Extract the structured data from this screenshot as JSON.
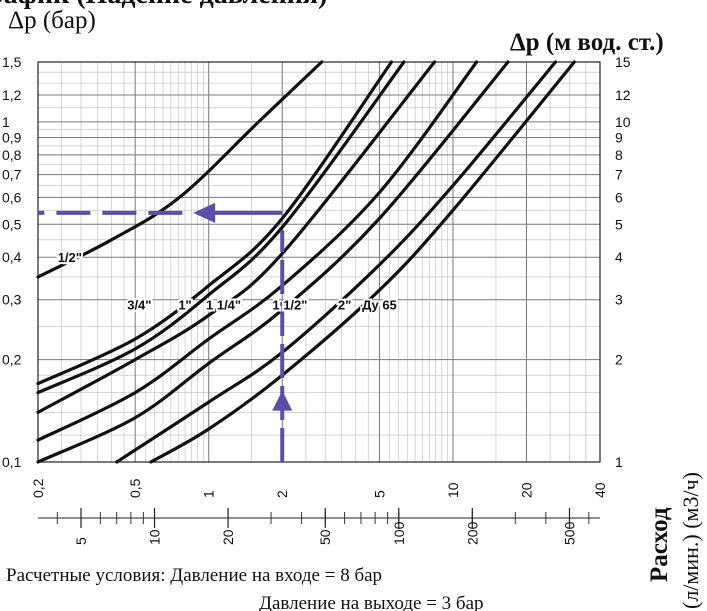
{
  "chart_data": {
    "type": "line",
    "title_fragment": "рафик (Падение давления)",
    "y_left_label": "Δp (бар)",
    "y_right_label": "Δp (м вод. ст.)",
    "x_right_label_1": "Расход",
    "x_right_label_2": "(л/мин.) (м3/ч)",
    "x_scale": "log",
    "y_scale": "log",
    "x_range_m3h": [
      0.2,
      40
    ],
    "y_range_bar": [
      0.1,
      1.5
    ],
    "y_ticks_left": [
      {
        "v": 1.5,
        "label": "1,5"
      },
      {
        "v": 1.2,
        "label": "1,2"
      },
      {
        "v": 1.0,
        "label": "1"
      },
      {
        "v": 0.9,
        "label": "0,9"
      },
      {
        "v": 0.8,
        "label": "0,8"
      },
      {
        "v": 0.7,
        "label": "0,7"
      },
      {
        "v": 0.6,
        "label": "0,6"
      },
      {
        "v": 0.5,
        "label": "0,5"
      },
      {
        "v": 0.4,
        "label": "0,4"
      },
      {
        "v": 0.3,
        "label": "0,3"
      },
      {
        "v": 0.2,
        "label": "0,2"
      },
      {
        "v": 0.1,
        "label": "0,1"
      }
    ],
    "y_ticks_right": [
      {
        "v": 1.5,
        "label": "15"
      },
      {
        "v": 1.2,
        "label": "12"
      },
      {
        "v": 1.0,
        "label": "10"
      },
      {
        "v": 0.9,
        "label": "9"
      },
      {
        "v": 0.8,
        "label": "8"
      },
      {
        "v": 0.7,
        "label": "7"
      },
      {
        "v": 0.6,
        "label": "6"
      },
      {
        "v": 0.5,
        "label": "5"
      },
      {
        "v": 0.4,
        "label": "4"
      },
      {
        "v": 0.3,
        "label": "3"
      },
      {
        "v": 0.2,
        "label": "2"
      },
      {
        "v": 0.1,
        "label": "1"
      }
    ],
    "x_ticks_m3h": [
      {
        "v": 0.2,
        "label": "0,2"
      },
      {
        "v": 0.5,
        "label": "0,5"
      },
      {
        "v": 1,
        "label": "1"
      },
      {
        "v": 2,
        "label": "2"
      },
      {
        "v": 5,
        "label": "5"
      },
      {
        "v": 10,
        "label": "10"
      },
      {
        "v": 20,
        "label": "20"
      },
      {
        "v": 40,
        "label": "40"
      }
    ],
    "x_ticks_lmin": [
      {
        "v": 5,
        "label": "5"
      },
      {
        "v": 10,
        "label": "10"
      },
      {
        "v": 20,
        "label": "20"
      },
      {
        "v": 50,
        "label": "50"
      },
      {
        "v": 100,
        "label": "100"
      },
      {
        "v": 200,
        "label": "200"
      },
      {
        "v": 500,
        "label": "500"
      }
    ],
    "series": [
      {
        "name": "1/2\"",
        "points": [
          [
            0.2,
            0.35
          ],
          [
            0.4,
            0.45
          ],
          [
            0.76,
            0.6
          ],
          [
            1.6,
            1.0
          ],
          [
            2.9,
            1.5
          ]
        ]
      },
      {
        "name": "3/4\"",
        "points": [
          [
            0.2,
            0.17
          ],
          [
            0.5,
            0.23
          ],
          [
            1.0,
            0.33
          ],
          [
            2.0,
            0.52
          ],
          [
            5.6,
            1.5
          ]
        ]
      },
      {
        "name": "1\"",
        "points": [
          [
            0.2,
            0.16
          ],
          [
            0.5,
            0.215
          ],
          [
            1.0,
            0.31
          ],
          [
            2.0,
            0.49
          ],
          [
            6.3,
            1.5
          ]
        ]
      },
      {
        "name": "1 1/4\"",
        "points": [
          [
            0.2,
            0.14
          ],
          [
            0.5,
            0.2
          ],
          [
            1.0,
            0.27
          ],
          [
            2.0,
            0.41
          ],
          [
            8.4,
            1.5
          ]
        ]
      },
      {
        "name": "1 1/2\"",
        "points": [
          [
            0.2,
            0.116
          ],
          [
            0.5,
            0.16
          ],
          [
            1.0,
            0.23
          ],
          [
            2.0,
            0.33
          ],
          [
            5.0,
            0.62
          ],
          [
            12.5,
            1.5
          ]
        ]
      },
      {
        "name": "2\"",
        "points": [
          [
            0.2,
            0.1
          ],
          [
            0.5,
            0.135
          ],
          [
            1.0,
            0.195
          ],
          [
            2.0,
            0.28
          ],
          [
            5.0,
            0.52
          ],
          [
            16.8,
            1.5
          ]
        ]
      },
      {
        "name": "",
        "points": [
          [
            0.42,
            0.1
          ],
          [
            1.0,
            0.15
          ],
          [
            2.0,
            0.21
          ],
          [
            5.0,
            0.38
          ],
          [
            10.0,
            0.65
          ],
          [
            26.3,
            1.5
          ]
        ]
      },
      {
        "name": "Ду 65",
        "points": [
          [
            0.58,
            0.1
          ],
          [
            1.0,
            0.125
          ],
          [
            2.0,
            0.18
          ],
          [
            5.0,
            0.32
          ],
          [
            10.0,
            0.55
          ],
          [
            31.4,
            1.5
          ]
        ]
      }
    ],
    "series_labels": [
      {
        "text": "1/2\"",
        "x": 0.27,
        "y": 0.4
      },
      {
        "text": "3/4\"",
        "x": 0.52,
        "y": 0.29
      },
      {
        "text": "1\"",
        "x": 0.8,
        "y": 0.29
      },
      {
        "text": "1 1/4\"",
        "x": 1.15,
        "y": 0.29
      },
      {
        "text": "1 1/2\"",
        "x": 2.15,
        "y": 0.29
      },
      {
        "text": "2\"",
        "x": 3.6,
        "y": 0.29
      },
      {
        "text": "Ду 65",
        "x": 5.0,
        "y": 0.29
      }
    ],
    "example": {
      "flow_m3h": 2.0,
      "dp_bar": 0.54,
      "color": "#5b4ea6"
    }
  },
  "footer": {
    "conditions_label": "Расчетные условия: Давление на входе = 8 бар",
    "outlet_label": "Давление на выходе = 3 бар"
  }
}
